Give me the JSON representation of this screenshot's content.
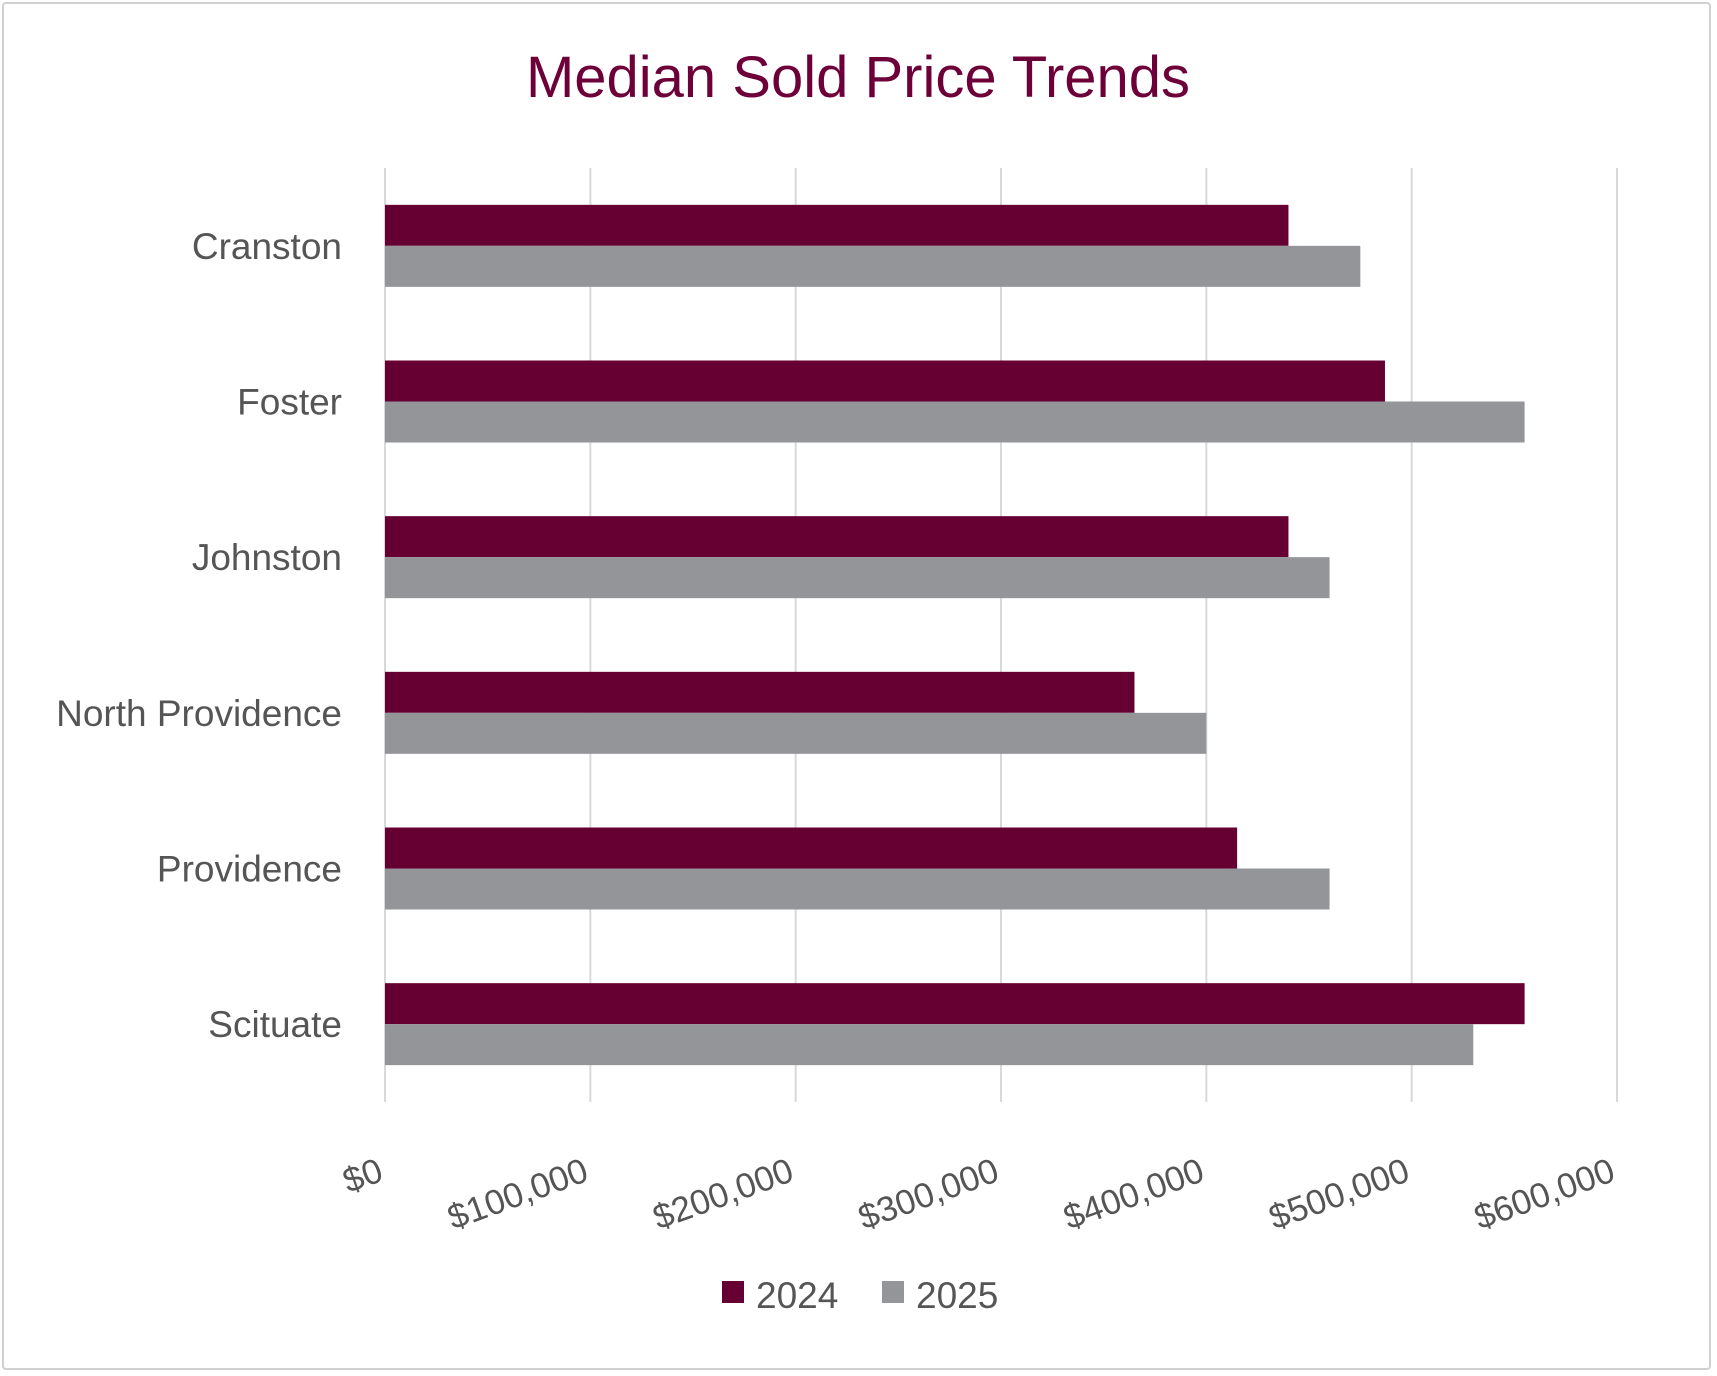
{
  "chart_data": {
    "type": "bar",
    "orientation": "horizontal",
    "title": "Median Sold Price Trends",
    "categories": [
      "Cranston",
      "Foster",
      "Johnston",
      "North Providence",
      "Providence",
      "Scituate"
    ],
    "series": [
      {
        "name": "2024",
        "color": "#660033",
        "values": [
          440000,
          487000,
          440000,
          365000,
          415000,
          555000
        ]
      },
      {
        "name": "2025",
        "color": "#939598",
        "values": [
          475000,
          555000,
          460000,
          400000,
          460000,
          530000
        ]
      }
    ],
    "xlim": [
      0,
      600000
    ],
    "x_ticks": [
      0,
      100000,
      200000,
      300000,
      400000,
      500000,
      600000
    ],
    "x_tick_labels": [
      "$0",
      "$100,000",
      "$200,000",
      "$300,000",
      "$400,000",
      "$500,000",
      "$600,000"
    ],
    "xlabel": "",
    "ylabel": "",
    "grid": true,
    "legend_position": "bottom-center"
  }
}
